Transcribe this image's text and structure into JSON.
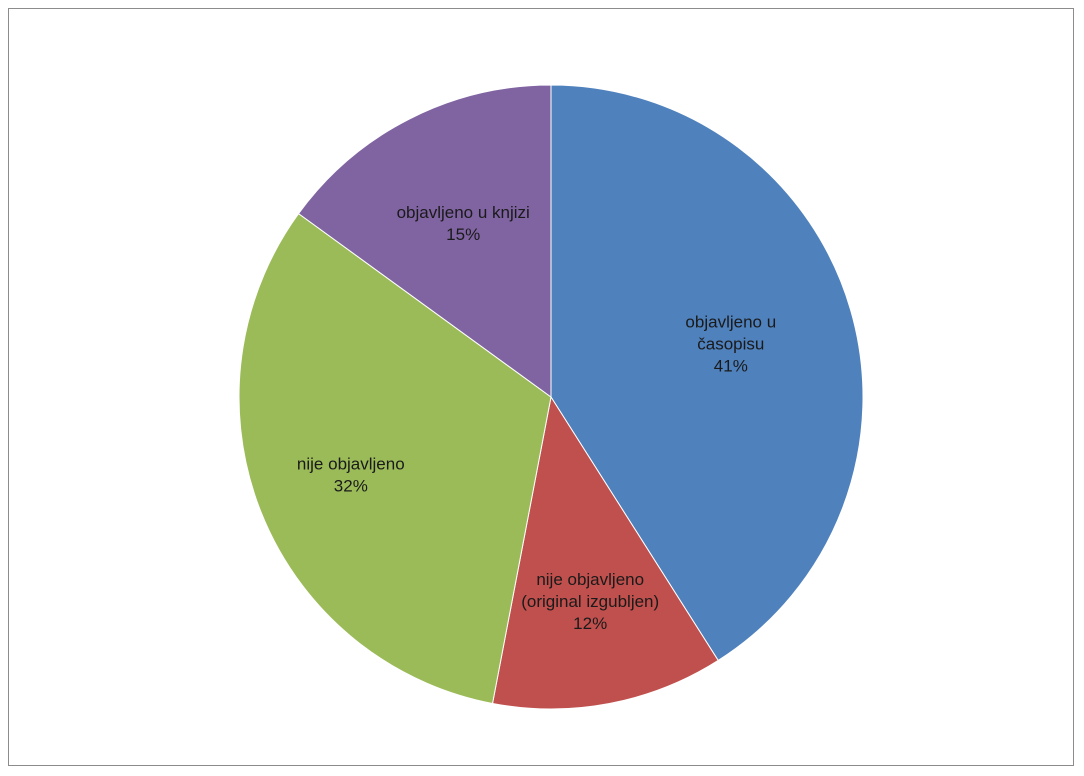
{
  "chart_data": {
    "type": "pie",
    "start_angle_deg": 0,
    "direction": "clockwise",
    "slices": [
      {
        "label_lines": [
          "objavljeno u",
          "časopisu"
        ],
        "percent_label": "41%",
        "value": 41,
        "color": "#4f81bd"
      },
      {
        "label_lines": [
          "nije objavljeno",
          "(original izgubljen)"
        ],
        "percent_label": "12%",
        "value": 12,
        "color": "#c0504d"
      },
      {
        "label_lines": [
          "nije objavljeno"
        ],
        "percent_label": "32%",
        "value": 32,
        "color": "#9bbb59"
      },
      {
        "label_lines": [
          "objavljeno u knjizi"
        ],
        "percent_label": "15%",
        "value": 15,
        "color": "#8064a2"
      }
    ],
    "legend": "none"
  }
}
